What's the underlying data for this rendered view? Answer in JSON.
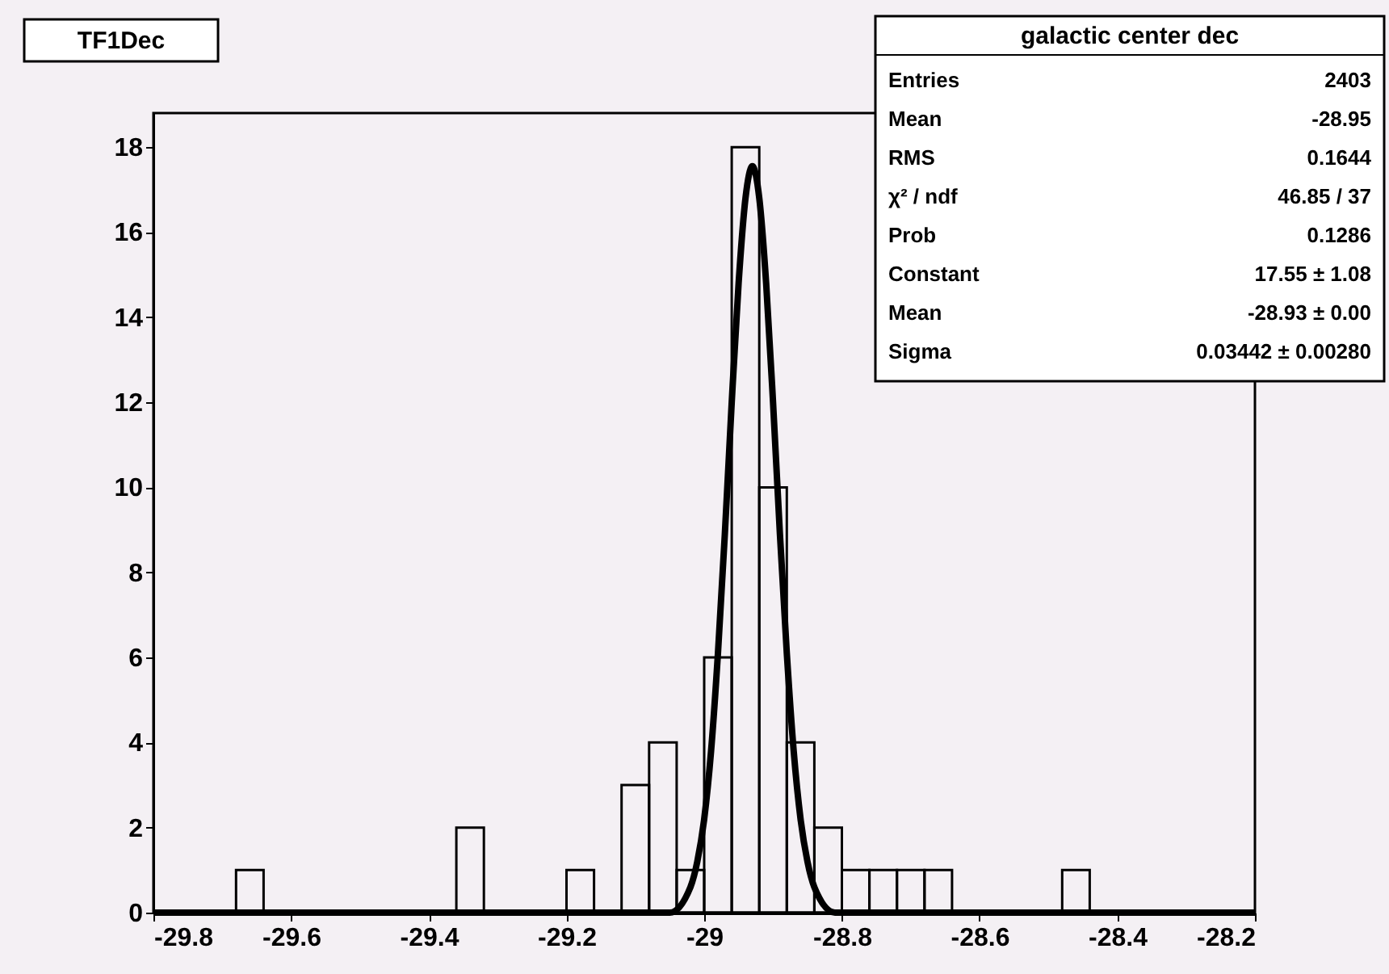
{
  "chart_data": {
    "type": "histogram",
    "title": "TF1Dec",
    "bins": [
      -29.8,
      -29.76,
      -29.72,
      -29.68,
      -29.64,
      -29.6,
      -29.56,
      -29.52,
      -29.48,
      -29.44,
      -29.4,
      -29.36,
      -29.32,
      -29.28,
      -29.24,
      -29.2,
      -29.16,
      -29.12,
      -29.08,
      -29.04,
      -29.0,
      -28.96,
      -28.92,
      -28.88,
      -28.84,
      -28.8,
      -28.76,
      -28.72,
      -28.68,
      -28.64,
      -28.6,
      -28.56,
      -28.52,
      -28.48,
      -28.44,
      -28.4,
      -28.36,
      -28.32,
      -28.28,
      -28.24,
      -28.2
    ],
    "values": [
      0,
      0,
      0,
      1,
      0,
      0,
      0,
      0,
      0,
      0,
      0,
      2,
      0,
      0,
      0,
      1,
      0,
      3,
      4,
      1,
      6,
      18,
      10,
      4,
      2,
      1,
      1,
      1,
      1,
      0,
      0,
      0,
      0,
      1,
      0,
      0,
      0,
      0,
      0,
      0
    ],
    "color": "#000000",
    "series": [
      {
        "type": "line",
        "color": "#000000",
        "x": [
          -29.8,
          -29.05,
          -29.02,
          -29.01,
          -29.0,
          -28.99,
          -28.98,
          -28.97,
          -28.96,
          -28.95,
          -28.94,
          -28.93,
          -28.92,
          -28.91,
          -28.9,
          -28.89,
          -28.88,
          -28.87,
          -28.86,
          -28.85,
          -28.84,
          -28.81,
          -28.2
        ],
        "values": [
          0,
          0,
          0.6,
          1.2,
          2.2,
          3.8,
          6.1,
          8.9,
          12.0,
          14.8,
          16.8,
          17.55,
          16.8,
          14.8,
          12.0,
          8.9,
          6.1,
          3.8,
          2.2,
          1.2,
          0.6,
          0,
          0
        ]
      }
    ],
    "xlim": [
      -29.8,
      -28.2
    ],
    "ylim": [
      0,
      18.8
    ],
    "xticks": [
      -29.8,
      -29.6,
      -29.4,
      -29.2,
      -29,
      -28.8,
      -28.6,
      -28.4,
      -28.2
    ],
    "yticks": [
      0,
      2,
      4,
      6,
      8,
      10,
      12,
      14,
      16,
      18
    ],
    "annotations": [
      "galactic center dec",
      "Entries",
      "2403",
      "Mean",
      "-28.95",
      "RMS",
      "0.1644",
      "χ² / ndf",
      "46.85 / 37",
      "Prob",
      "0.1286",
      "Constant",
      "17.55 ± 1.08",
      "Mean",
      "-28.93 ± 0.00",
      "Sigma",
      "0.03442 ± 0.00280"
    ]
  }
}
